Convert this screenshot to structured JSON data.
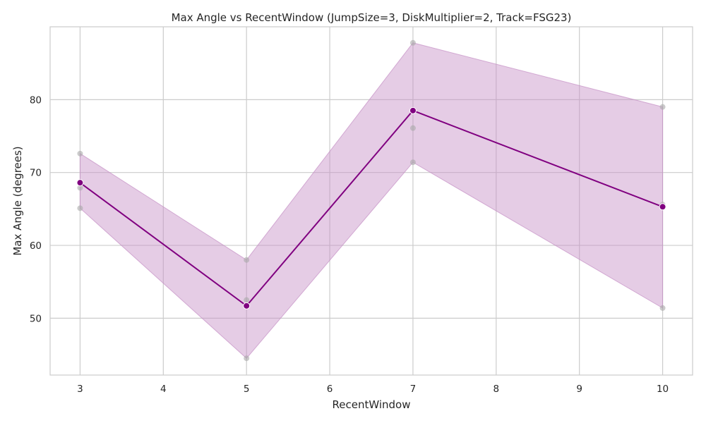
{
  "chart_data": {
    "type": "line",
    "title": "Max Angle vs RecentWindow (JumpSize=3, DiskMultiplier=2, Track=FSG23)",
    "xlabel": "RecentWindow",
    "ylabel": "Max Angle (degrees)",
    "xlim": [
      2.64,
      10.36
    ],
    "ylim": [
      42.2,
      90.0
    ],
    "x_ticks": [
      3,
      4,
      5,
      6,
      7,
      8,
      9,
      10
    ],
    "y_ticks": [
      50,
      60,
      70,
      80
    ],
    "grid": true,
    "legend": "none",
    "colors": {
      "line": "#800080",
      "band": "#c58ec5",
      "raw_points": "#a9a9a9",
      "grid": "#cccccc",
      "axes": "#cccccc"
    },
    "series": [
      {
        "kind": "mean",
        "x": [
          3,
          5,
          7,
          10
        ],
        "y": [
          68.6,
          51.7,
          78.5,
          65.3
        ]
      },
      {
        "kind": "band",
        "x": [
          3,
          5,
          7,
          10
        ],
        "lower": [
          65.1,
          44.5,
          71.4,
          51.4
        ],
        "upper": [
          72.6,
          58.0,
          87.8,
          79.0
        ]
      },
      {
        "kind": "raw",
        "points": [
          [
            3,
            72.6
          ],
          [
            3,
            67.9
          ],
          [
            3,
            65.1
          ],
          [
            5,
            58.0
          ],
          [
            5,
            52.5
          ],
          [
            5,
            44.5
          ],
          [
            7,
            87.8
          ],
          [
            7,
            76.1
          ],
          [
            7,
            71.4
          ],
          [
            10,
            79.0
          ],
          [
            10,
            65.6
          ],
          [
            10,
            51.4
          ]
        ]
      }
    ]
  }
}
